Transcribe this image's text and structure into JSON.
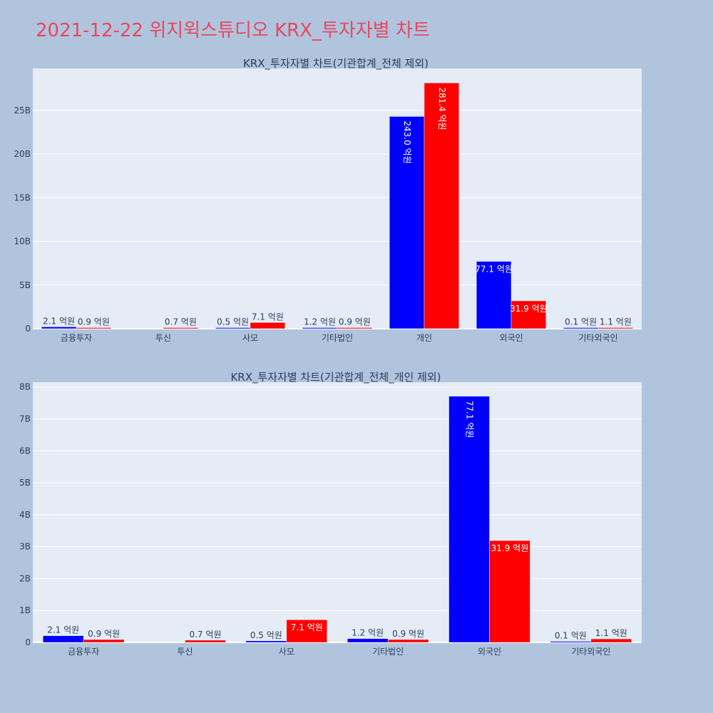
{
  "page": {
    "title": "2021-12-22 위지윅스튜디오 KRX_투자자별 차트"
  },
  "colors": {
    "background": "#b0c4de",
    "plot_bg": "#e5ecf6",
    "title": "#e8475f",
    "series_a": "#0000ff",
    "series_b": "#ff0000"
  },
  "chart_data": [
    {
      "type": "bar",
      "title": "KRX_투자자별 차트(기관합계_전체 제외)",
      "categories": [
        "금융투자",
        "투신",
        "사모",
        "기타법인",
        "개인",
        "외국인",
        "기타외국인"
      ],
      "series": [
        {
          "color": "#0000ff",
          "values": [
            210000000,
            0,
            50000000,
            120000000,
            24300000000,
            7710000000,
            10000000
          ],
          "labels": [
            "2.1 억원",
            "",
            "0.5 억원",
            "1.2 억원",
            "243.0 억원",
            "77.1 억원",
            "0.1 억원"
          ]
        },
        {
          "color": "#ff0000",
          "values": [
            90000000,
            70000000,
            710000000,
            90000000,
            28140000000,
            3190000000,
            110000000
          ],
          "labels": [
            "0.9 억원",
            "0.7 억원",
            "7.1 억원",
            "0.9 억원",
            "281.4 억원",
            "31.9 억원",
            "1.1 억원"
          ]
        }
      ],
      "ylim": [
        0,
        29800000000
      ],
      "yticks": [
        0,
        5000000000,
        10000000000,
        15000000000,
        20000000000,
        25000000000
      ],
      "yticklabels": [
        "0",
        "5B",
        "10B",
        "15B",
        "20B",
        "25B"
      ],
      "grid": true
    },
    {
      "type": "bar",
      "title": "KRX_투자자별 차트(기관합계_전체_개인 제외)",
      "categories": [
        "금융투자",
        "투신",
        "사모",
        "기타법인",
        "외국인",
        "기타외국인"
      ],
      "series": [
        {
          "color": "#0000ff",
          "values": [
            210000000,
            0,
            50000000,
            120000000,
            7710000000,
            10000000
          ],
          "labels": [
            "2.1 억원",
            "",
            "0.5 억원",
            "1.2 억원",
            "77.1 억원",
            "0.1 억원"
          ]
        },
        {
          "color": "#ff0000",
          "values": [
            90000000,
            70000000,
            710000000,
            90000000,
            3190000000,
            110000000
          ],
          "labels": [
            "0.9 억원",
            "0.7 억원",
            "7.1 억원",
            "0.9 억원",
            "31.9 억원",
            "1.1 억원"
          ]
        }
      ],
      "ylim": [
        0,
        8150000000
      ],
      "yticks": [
        0,
        1000000000,
        2000000000,
        3000000000,
        4000000000,
        5000000000,
        6000000000,
        7000000000,
        8000000000
      ],
      "yticklabels": [
        "0",
        "1B",
        "2B",
        "3B",
        "4B",
        "5B",
        "6B",
        "7B",
        "8B"
      ],
      "grid": true
    }
  ]
}
